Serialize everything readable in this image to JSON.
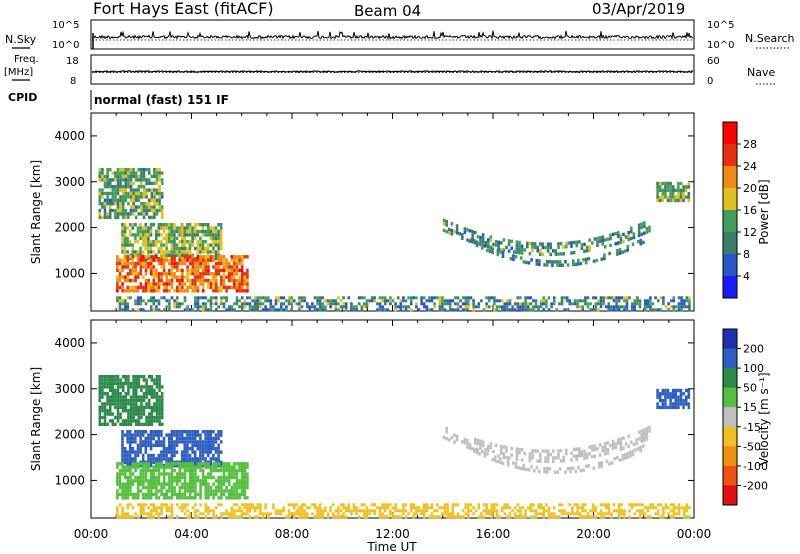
{
  "header": {
    "station": "Fort Hays East (fitACF)",
    "beam": "Beam 04",
    "date": "03/Apr/2019"
  },
  "top_panels": {
    "nsky_label": "N.Sky",
    "nsky_ticks": [
      "10^5",
      "10^0"
    ],
    "nsearch_label": "N.Search",
    "nsearch_ticks": [
      "10^5",
      "10^0"
    ],
    "freq_label": "Freq.",
    "freq_unit": "[MHz]",
    "freq_ticks": [
      "18",
      "8"
    ],
    "nave_label": "Nave",
    "nave_ticks": [
      "60",
      "0"
    ],
    "cpid_label": "CPID",
    "cpid_text": "normal (fast) 151 IF"
  },
  "chart_data": [
    {
      "type": "heatmap",
      "name": "power-panel",
      "ylabel": "Slant Range [km]",
      "xlabel": "",
      "x_ticks": [
        "00:00",
        "04:00",
        "08:00",
        "12:00",
        "16:00",
        "20:00",
        "00:00"
      ],
      "y_ticks": [
        1000,
        2000,
        3000,
        4000
      ],
      "ylim": [
        180,
        4500
      ],
      "xlim_hours": [
        0,
        24
      ],
      "colorbar": {
        "label": "Power [dB]",
        "ticks": [
          "4",
          "8",
          "12",
          "16",
          "20",
          "24",
          "28"
        ],
        "range": [
          0,
          30
        ],
        "colors": [
          "#1a1aff",
          "#2a55c8",
          "#3a7e6a",
          "#3f9f5a",
          "#e0c020",
          "#f08a10",
          "#e83010",
          "#ff0000"
        ]
      },
      "regions": [
        {
          "label": "morning 3000 km",
          "t": [
            0.3,
            2.8
          ],
          "r": [
            2200,
            3300
          ],
          "level": 12
        },
        {
          "label": "morning 2000 km",
          "t": [
            1.2,
            5.2
          ],
          "r": [
            1300,
            2100
          ],
          "level": 14
        },
        {
          "label": "morning main",
          "t": [
            1.0,
            6.2
          ],
          "r": [
            650,
            1400
          ],
          "level": 22
        },
        {
          "label": "evening arc upper",
          "t": [
            14.0,
            22.2
          ],
          "r": [
            1400,
            1900
          ],
          "level": 11
        },
        {
          "label": "evening arc lower",
          "t": [
            15.0,
            22.0
          ],
          "r": [
            1150,
            1400
          ],
          "level": 10
        },
        {
          "label": "late 3000 km",
          "t": [
            22.5,
            23.8
          ],
          "r": [
            2600,
            3000
          ],
          "level": 13
        },
        {
          "label": "ground scatter band",
          "t": [
            1.0,
            23.8
          ],
          "r": [
            200,
            500
          ],
          "level": 10
        }
      ]
    },
    {
      "type": "heatmap",
      "name": "velocity-panel",
      "ylabel": "Slant Range [km]",
      "xlabel": "Time UT",
      "x_ticks": [
        "00:00",
        "04:00",
        "08:00",
        "12:00",
        "16:00",
        "20:00",
        "00:00"
      ],
      "y_ticks": [
        1000,
        2000,
        3000,
        4000
      ],
      "ylim": [
        180,
        4500
      ],
      "xlim_hours": [
        0,
        24
      ],
      "colorbar": {
        "label": "Velocity [m s⁻¹]",
        "ticks": [
          "200",
          "100",
          "50",
          "15",
          "-15",
          "-50",
          "-100",
          "-200"
        ],
        "range": [
          -250,
          250
        ],
        "colors": [
          "#1f2fb0",
          "#2e5fc0",
          "#2b8a4a",
          "#55c040",
          "#c0c0c0",
          "#f0c020",
          "#f09010",
          "#f05010",
          "#e01010"
        ]
      },
      "regions": [
        {
          "label": "morning 3000 km",
          "t": [
            0.3,
            2.8
          ],
          "r": [
            2200,
            3300
          ],
          "level": 60
        },
        {
          "label": "morning 2000 km",
          "t": [
            1.2,
            5.2
          ],
          "r": [
            1300,
            2100
          ],
          "level": 120
        },
        {
          "label": "morning main",
          "t": [
            1.0,
            6.2
          ],
          "r": [
            650,
            1400
          ],
          "level": 40
        },
        {
          "label": "evening arc upper",
          "t": [
            14.0,
            22.2
          ],
          "r": [
            1400,
            1900
          ],
          "level": 0
        },
        {
          "label": "evening arc lower",
          "t": [
            15.0,
            22.0
          ],
          "r": [
            1150,
            1400
          ],
          "level": 0
        },
        {
          "label": "late 3000 km",
          "t": [
            22.5,
            23.8
          ],
          "r": [
            2600,
            3000
          ],
          "level": 180
        },
        {
          "label": "ground scatter band",
          "t": [
            1.0,
            23.8
          ],
          "r": [
            200,
            500
          ],
          "level": -40
        }
      ]
    }
  ]
}
